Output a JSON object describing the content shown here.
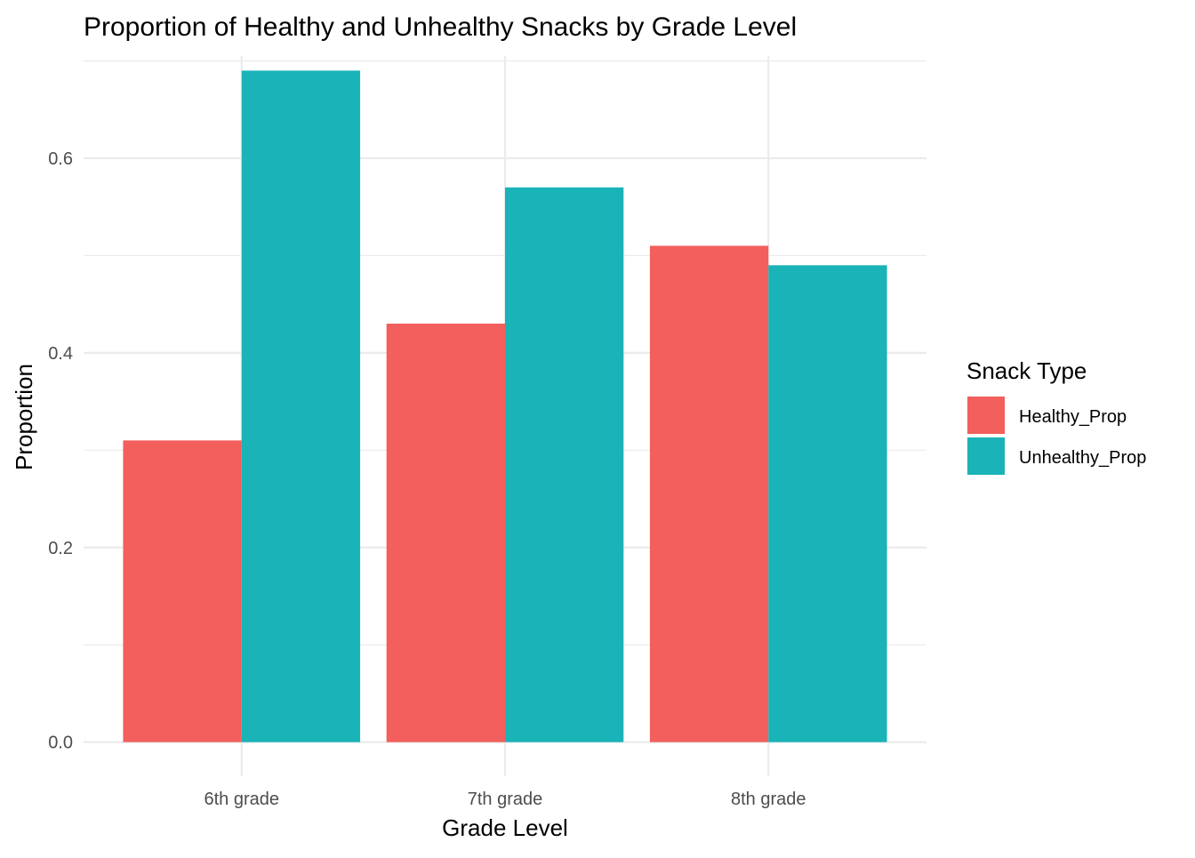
{
  "chart_data": {
    "type": "bar",
    "title": "Proportion of Healthy and Unhealthy Snacks by Grade Level",
    "xlabel": "Grade Level",
    "ylabel": "Proportion",
    "categories": [
      "6th grade",
      "7th grade",
      "8th grade"
    ],
    "series": [
      {
        "name": "Healthy_Prop",
        "values": [
          0.31,
          0.43,
          0.51
        ],
        "color": "#F25F5C"
      },
      {
        "name": "Unhealthy_Prop",
        "values": [
          0.69,
          0.57,
          0.49
        ],
        "color": "#19B3B8"
      }
    ],
    "ylim": [
      -0.035,
      0.705
    ],
    "yticks": [
      0.0,
      0.2,
      0.4,
      0.6
    ],
    "ytick_labels": [
      "0.0",
      "0.2",
      "0.4",
      "0.6"
    ],
    "y_minor_ticks": [
      0.1,
      0.3,
      0.5,
      0.7
    ],
    "legend": {
      "title": "Snack Type",
      "position": "right"
    },
    "grid": true,
    "colors": {
      "grid": "#EBEBEB",
      "text": "#4D4D4D",
      "title": "#000000"
    }
  }
}
